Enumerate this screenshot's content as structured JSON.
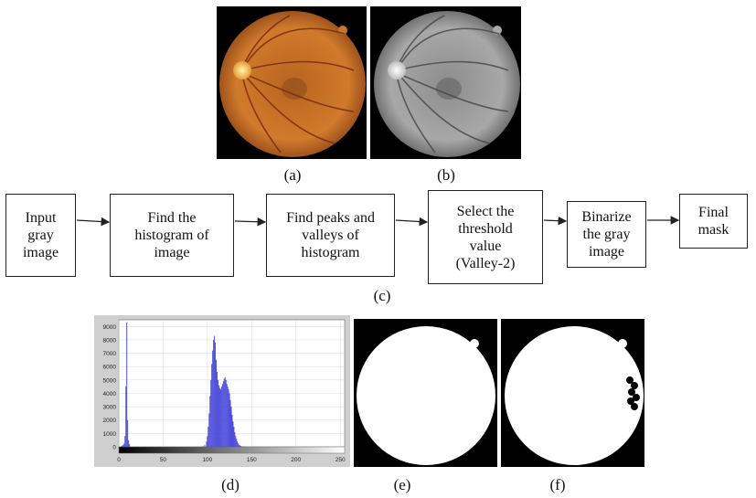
{
  "captions": {
    "a": "(a)",
    "b": "(b)",
    "c": "(c)",
    "d": "(d)",
    "e": "(e)",
    "f": "(f)"
  },
  "flow": {
    "steps": [
      "Input\ngray\nimage",
      "Find the\nhistogram of\nimage",
      "Find peaks and\nvalleys of\nhistogram",
      "Select the\nthreshold\nvalue\n(Valley-2)",
      "Binarize\nthe gray\nimage",
      "Final\nmask"
    ]
  },
  "colors": {
    "histogram_bar": "#3b3bd6",
    "panel_gray": "#cfcfcf",
    "fundus_orange": "#c9762a"
  },
  "chart_data": {
    "type": "bar",
    "title": "",
    "xlabel": "",
    "ylabel": "",
    "xlim": [
      0,
      255
    ],
    "ylim": [
      0,
      9500
    ],
    "xticks": [
      0,
      50,
      100,
      150,
      200,
      250
    ],
    "yticks": [
      0,
      1000,
      2000,
      3000,
      4000,
      5000,
      6000,
      7000,
      8000,
      9000
    ],
    "grid": true,
    "colorbar": "grayscale",
    "x": [
      3,
      4,
      5,
      6,
      7,
      8,
      9,
      10,
      11,
      12,
      95,
      97,
      99,
      100,
      101,
      102,
      103,
      104,
      105,
      106,
      107,
      108,
      109,
      110,
      111,
      112,
      113,
      114,
      115,
      116,
      117,
      118,
      119,
      120,
      121,
      122,
      123,
      124,
      125,
      126,
      127,
      128,
      129,
      130,
      131,
      132,
      133,
      134,
      135,
      136,
      137,
      138,
      140,
      142,
      145,
      150,
      155,
      160,
      170,
      180,
      190,
      200
    ],
    "values": [
      50,
      100,
      150,
      250,
      800,
      4500,
      9300,
      2000,
      500,
      200,
      50,
      150,
      400,
      800,
      1500,
      2500,
      3800,
      5000,
      6200,
      7200,
      8000,
      8300,
      7800,
      6500,
      5600,
      5000,
      4600,
      4400,
      4300,
      4500,
      4700,
      4900,
      5100,
      5200,
      5000,
      4700,
      4500,
      4300,
      4000,
      3500,
      3000,
      2400,
      1900,
      1500,
      1100,
      800,
      600,
      400,
      250,
      150,
      100,
      60,
      40,
      30,
      20,
      15,
      10,
      5,
      10,
      5,
      5,
      3
    ]
  }
}
